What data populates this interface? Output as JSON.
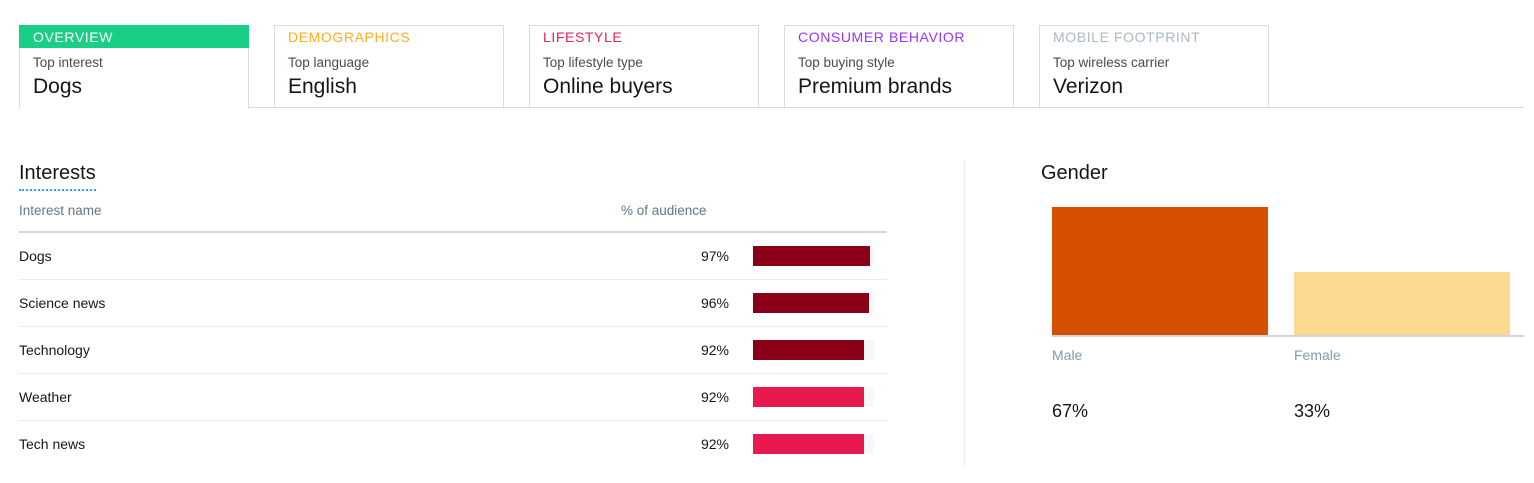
{
  "tabs": [
    {
      "title": "OVERVIEW",
      "subtitle": "Top interest",
      "value": "Dogs",
      "color": "#19cf86",
      "active": true
    },
    {
      "title": "DEMOGRAPHICS",
      "subtitle": "Top language",
      "value": "English",
      "color": "#ffad1f",
      "active": false
    },
    {
      "title": "LIFESTYLE",
      "subtitle": "Top lifestyle type",
      "value": "Online buyers",
      "color": "#e0245e",
      "active": false
    },
    {
      "title": "CONSUMER BEHAVIOR",
      "subtitle": "Top buying style",
      "value": "Premium brands",
      "color": "#9933ff",
      "active": false
    },
    {
      "title": "MOBILE FOOTPRINT",
      "subtitle": "Top wireless carrier",
      "value": "Verizon",
      "color": "#aab8c2",
      "active": false
    }
  ],
  "interests": {
    "title": "Interests",
    "col_name": "Interest name",
    "col_pct": "% of audience",
    "rows": [
      {
        "name": "Dogs",
        "pct": "97%",
        "value": 97,
        "color": "#8b0019"
      },
      {
        "name": "Science news",
        "pct": "96%",
        "value": 96,
        "color": "#8b0019"
      },
      {
        "name": "Technology",
        "pct": "92%",
        "value": 92,
        "color": "#8b0019"
      },
      {
        "name": "Weather",
        "pct": "92%",
        "value": 92,
        "color": "#e8194f"
      },
      {
        "name": "Tech news",
        "pct": "92%",
        "value": 92,
        "color": "#e8194f"
      }
    ]
  },
  "gender": {
    "title": "Gender",
    "chart_data": {
      "type": "bar",
      "title": "Gender",
      "categories": [
        "Male",
        "Female"
      ],
      "values": [
        67,
        33
      ],
      "value_labels": [
        "67%",
        "33%"
      ],
      "colors": [
        "#d64f00",
        "#fcd98f"
      ],
      "ylim": [
        0,
        67
      ]
    }
  }
}
